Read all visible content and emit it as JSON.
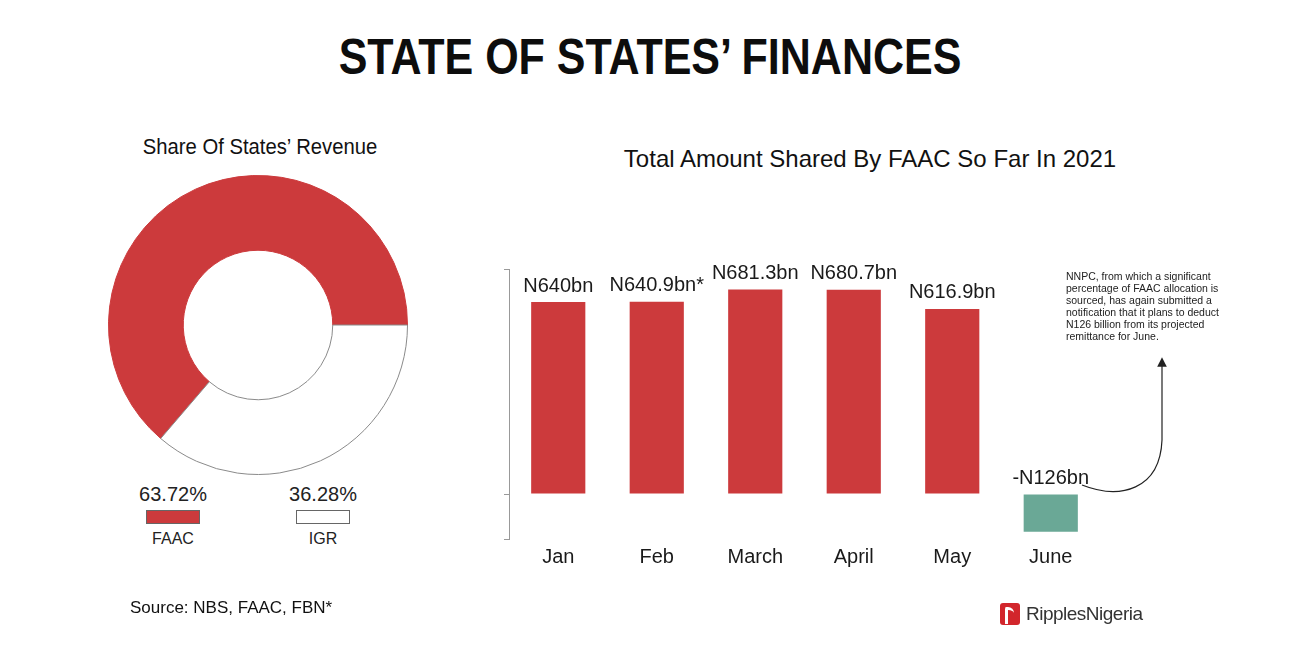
{
  "title": "STATE OF STATES’ FINANCES",
  "source": "Source: NBS, FAAC, FBN*",
  "logo": "RipplesNigeria",
  "chart_data": [
    {
      "type": "doughnut",
      "title": "Share Of States’ Revenue",
      "categories": [
        "FAAC",
        "IGR"
      ],
      "values": [
        63.72,
        36.28
      ],
      "value_labels": [
        "63.72%",
        "36.28%"
      ],
      "colors": [
        "#cc3a3c",
        "#ffffff"
      ],
      "legend": "bottom"
    },
    {
      "type": "bar",
      "title": "Total Amount Shared By FAAC So Far In 2021",
      "categories": [
        "Jan",
        "Feb",
        "March",
        "April",
        "May",
        "June"
      ],
      "values": [
        640,
        640.9,
        681.3,
        680.7,
        616.9,
        -126
      ],
      "value_labels": [
        "N640bn",
        "N640.9bn*",
        "N681.3bn",
        "N680.7bn",
        "N616.9bn",
        "-N126bn"
      ],
      "colors": [
        "#cc3a3c",
        "#cc3a3c",
        "#cc3a3c",
        "#cc3a3c",
        "#cc3a3c",
        "#6aa896"
      ],
      "ylim": [
        -150,
        750
      ],
      "yticks": [
        -150,
        0,
        750
      ],
      "grid": false,
      "tick_labels": "x",
      "data_labels": true,
      "annotations": [
        "NNPC, from which a significant percentage of FAAC allocation is sourced, has again submitted a notification that it plans to deduct N126 billion from its projected remittance for June."
      ]
    }
  ]
}
